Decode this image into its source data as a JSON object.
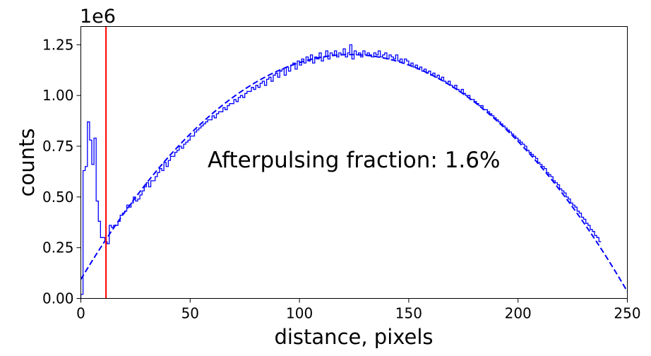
{
  "chart_data": {
    "type": "histogram",
    "xlabel": "distance, pixels",
    "ylabel": "counts",
    "y_scale_label": "1e6",
    "y_scale_factor": 1000000,
    "xlim": [
      0,
      250
    ],
    "ylim": [
      0,
      1.34
    ],
    "x_ticks": [
      0,
      50,
      100,
      150,
      200,
      250
    ],
    "x_tick_labels": [
      "0",
      "50",
      "100",
      "150",
      "200",
      "250"
    ],
    "y_ticks": [
      0,
      0.25,
      0.5,
      0.75,
      1.0,
      1.25
    ],
    "y_tick_labels": [
      "0.00",
      "0.25",
      "0.50",
      "0.75",
      "1.00",
      "1.25"
    ],
    "annotation": "Afterpulsing fraction: 1.6%",
    "bin_width": 1,
    "threshold_x": 11.5,
    "fit_curve": {
      "a": -7.28e-05,
      "b": 0.01796,
      "c": 0.094
    },
    "series": [
      {
        "style": "step",
        "color": "#0000ff",
        "bin_edges_start": 0,
        "values": [
          0.02,
          0.63,
          0.65,
          0.87,
          0.78,
          0.66,
          0.79,
          0.48,
          0.38,
          0.3,
          0.3,
          0.28,
          0.27,
          0.36,
          0.35,
          0.36,
          0.36,
          0.38,
          0.41,
          0.42,
          0.43,
          0.46,
          0.45,
          0.47,
          0.5,
          0.48,
          0.49,
          0.51,
          0.53,
          0.55,
          0.57,
          0.55,
          0.58,
          0.58,
          0.6,
          0.62,
          0.64,
          0.63,
          0.67,
          0.65,
          0.68,
          0.7,
          0.7,
          0.72,
          0.73,
          0.75,
          0.74,
          0.76,
          0.77,
          0.78,
          0.8,
          0.8,
          0.82,
          0.83,
          0.84,
          0.85,
          0.86,
          0.87,
          0.88,
          0.88,
          0.9,
          0.89,
          0.91,
          0.92,
          0.92,
          0.94,
          0.93,
          0.95,
          0.96,
          0.96,
          0.98,
          0.97,
          0.99,
          1.0,
          0.99,
          1.01,
          1.02,
          1.02,
          1.04,
          1.03,
          1.05,
          1.04,
          1.06,
          1.07,
          1.05,
          1.08,
          1.09,
          1.07,
          1.1,
          1.11,
          1.09,
          1.12,
          1.13,
          1.1,
          1.14,
          1.12,
          1.15,
          1.16,
          1.13,
          1.17,
          1.15,
          1.18,
          1.16,
          1.19,
          1.17,
          1.2,
          1.16,
          1.19,
          1.18,
          1.21,
          1.17,
          1.19,
          1.22,
          1.18,
          1.21,
          1.2,
          1.22,
          1.19,
          1.21,
          1.2,
          1.23,
          1.19,
          1.21,
          1.25,
          1.18,
          1.22,
          1.2,
          1.21,
          1.19,
          1.22,
          1.2,
          1.21,
          1.2,
          1.19,
          1.21,
          1.2,
          1.22,
          1.19,
          1.2,
          1.21,
          1.18,
          1.2,
          1.19,
          1.18,
          1.2,
          1.17,
          1.18,
          1.16,
          1.18,
          1.17,
          1.15,
          1.16,
          1.14,
          1.15,
          1.13,
          1.14,
          1.12,
          1.13,
          1.11,
          1.12,
          1.1,
          1.11,
          1.09,
          1.1,
          1.08,
          1.09,
          1.07,
          1.06,
          1.07,
          1.05,
          1.04,
          1.05,
          1.03,
          1.02,
          1.03,
          1.01,
          1.0,
          1.0,
          0.98,
          0.98,
          0.97,
          0.96,
          0.95,
          0.95,
          0.93,
          0.93,
          0.92,
          0.91,
          0.9,
          0.89,
          0.88,
          0.87,
          0.86,
          0.85,
          0.84,
          0.83,
          0.82,
          0.81,
          0.8,
          0.79,
          0.78,
          0.77,
          0.76,
          0.75,
          0.73,
          0.72,
          0.71,
          0.7,
          0.69,
          0.67,
          0.66,
          0.65,
          0.64,
          0.62,
          0.61,
          0.6,
          0.58,
          0.57,
          0.56,
          0.54,
          0.53,
          0.52,
          0.5,
          0.49,
          0.47,
          0.46,
          0.45,
          0.43,
          0.42,
          0.4,
          0.39,
          0.37,
          0.36,
          0.34,
          0.33,
          0.31,
          0.3,
          0.28
        ]
      },
      {
        "style": "dashed",
        "color": "#0000ff"
      }
    ],
    "vline": {
      "x": 11.5,
      "color": "#ff0000"
    },
    "grid": false,
    "legend": "none"
  }
}
